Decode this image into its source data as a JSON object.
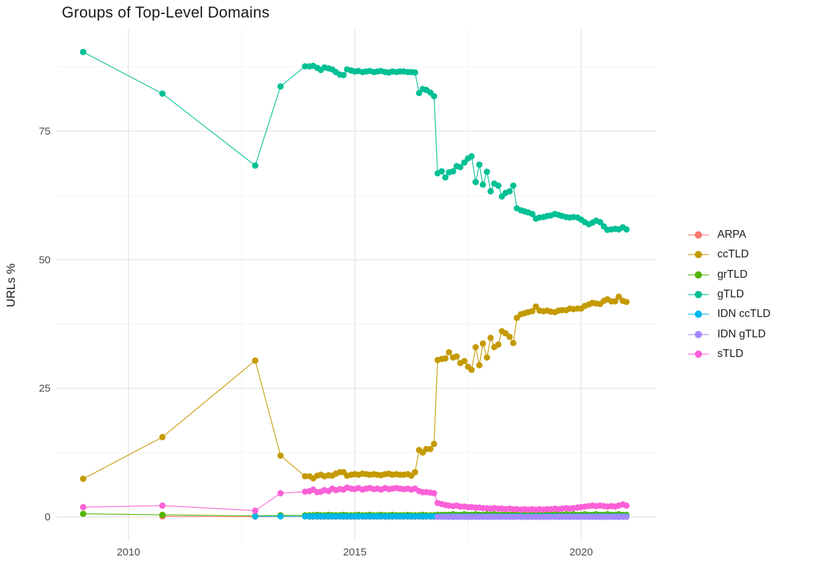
{
  "chart_data": {
    "type": "line",
    "title": "Groups of Top-Level Domains",
    "xlabel": "",
    "ylabel": "URLs %",
    "x_ticks": [
      2010,
      2015,
      2020
    ],
    "x_minor_ticks": [
      2012.5,
      2017.5
    ],
    "y_ticks": [
      0,
      25,
      50,
      75
    ],
    "y_minor_ticks": [
      12.5,
      37.5,
      62.5,
      87.5
    ],
    "xlim": [
      2008.4,
      2021.7
    ],
    "ylim": [
      -4.5,
      95
    ],
    "grid": true,
    "legend_position": "right",
    "x_dense": [
      2014.0,
      2014.08,
      2014.17,
      2014.25,
      2014.33,
      2014.42,
      2014.5,
      2014.58,
      2014.67,
      2014.75,
      2014.83,
      2014.92,
      2015.0,
      2015.08,
      2015.17,
      2015.25,
      2015.33,
      2015.42,
      2015.5,
      2015.58,
      2015.67,
      2015.75,
      2015.83,
      2015.92,
      2016.0,
      2016.08,
      2016.17,
      2016.25,
      2016.33,
      2016.42,
      2016.5,
      2016.58,
      2016.67,
      2016.75,
      2016.83,
      2016.92,
      2017.0,
      2017.08,
      2017.17,
      2017.25,
      2017.33,
      2017.42,
      2017.5,
      2017.58,
      2017.67,
      2017.75,
      2017.83,
      2017.92,
      2018.0,
      2018.08,
      2018.17,
      2018.25,
      2018.33,
      2018.42,
      2018.5,
      2018.58,
      2018.67,
      2018.75,
      2018.83,
      2018.92,
      2019.0,
      2019.08,
      2019.17,
      2019.25,
      2019.33,
      2019.42,
      2019.5,
      2019.58,
      2019.67,
      2019.75,
      2019.83,
      2019.92,
      2020.0,
      2020.08,
      2020.17,
      2020.25,
      2020.33,
      2020.42,
      2020.5,
      2020.58,
      2020.67,
      2020.75,
      2020.83,
      2020.92,
      2021.0
    ],
    "series": [
      {
        "name": "ARPA",
        "color": "#F8766D",
        "pre_x": [
          2010.75,
          2012.8
        ],
        "pre_y": [
          0.1,
          0.05
        ],
        "dense_y": [
          0.05,
          0.05,
          0.05,
          0.05,
          0.05,
          0.05,
          0.05,
          0.05,
          0.05,
          0.05,
          0.05,
          0.05,
          0.05,
          0.05,
          0.05,
          0.05,
          0.05,
          0.05,
          0.05,
          0.05,
          0.05,
          0.05,
          0.05,
          0.05,
          0.05,
          0.05,
          0.05,
          0.05,
          0.05,
          0.05,
          0.05,
          0.05,
          0.05,
          0.05,
          0.05,
          0.05,
          0.05,
          0.05,
          0.05,
          0.05,
          0.05,
          0.05,
          0.05,
          0.05,
          0.05,
          0.05,
          0.05,
          0.05,
          0.05,
          0.05,
          0.05,
          0.05,
          0.05,
          0.05,
          0.05,
          0.05,
          0.05,
          0.05,
          0.05,
          0.05,
          0.05,
          0.05,
          0.05,
          0.05,
          0.05,
          0.05,
          0.05,
          0.05,
          0.05,
          0.05,
          0.05,
          0.05,
          0.05,
          0.05,
          0.05,
          0.05,
          0.05,
          0.05,
          0.05,
          0.05,
          0.05,
          0.05,
          0.05,
          0.05,
          0.05
        ]
      },
      {
        "name": "ccTLD",
        "color": "#C49A00",
        "pre_x": [
          2009.0,
          2010.75,
          2012.8,
          2013.36,
          2013.9
        ],
        "pre_y": [
          7.4,
          15.5,
          30.4,
          11.9,
          7.9
        ],
        "dense_y": [
          7.9,
          7.5,
          8.0,
          8.2,
          7.9,
          8.1,
          8.0,
          8.4,
          8.7,
          8.7,
          8.0,
          8.2,
          8.3,
          8.2,
          8.4,
          8.3,
          8.2,
          8.3,
          8.2,
          8.1,
          8.3,
          8.4,
          8.2,
          8.3,
          8.2,
          8.2,
          8.3,
          8.0,
          8.7,
          13.0,
          12.5,
          13.2,
          13.2,
          14.2,
          30.5,
          30.7,
          30.8,
          32.0,
          31.0,
          31.2,
          29.9,
          30.3,
          29.2,
          28.6,
          33.0,
          29.5,
          33.7,
          31.0,
          34.8,
          33.0,
          33.5,
          36.1,
          35.7,
          35.0,
          33.8,
          38.7,
          39.4,
          39.6,
          39.8,
          40.0,
          40.9,
          40.1,
          40.0,
          40.1,
          39.9,
          39.8,
          40.1,
          40.2,
          40.2,
          40.5,
          40.4,
          40.5,
          40.5,
          41.0,
          41.3,
          41.6,
          41.5,
          41.4,
          42.0,
          42.3,
          41.9,
          41.9,
          42.8,
          42.0,
          41.8
        ]
      },
      {
        "name": "grTLD",
        "color": "#53B400",
        "pre_x": [
          2009.0,
          2010.75,
          2012.8,
          2013.36,
          2013.9
        ],
        "pre_y": [
          0.6,
          0.4,
          0.2,
          0.3,
          0.3
        ],
        "dense_y": [
          0.3,
          0.3,
          0.4,
          0.3,
          0.3,
          0.4,
          0.3,
          0.3,
          0.3,
          0.4,
          0.3,
          0.3,
          0.3,
          0.4,
          0.3,
          0.3,
          0.4,
          0.3,
          0.3,
          0.4,
          0.3,
          0.3,
          0.4,
          0.3,
          0.3,
          0.3,
          0.4,
          0.3,
          0.3,
          0.3,
          0.4,
          0.3,
          0.3,
          0.3,
          0.4,
          0.4,
          0.4,
          0.4,
          0.5,
          0.4,
          0.4,
          0.5,
          0.4,
          0.4,
          0.5,
          0.4,
          0.4,
          0.5,
          0.4,
          0.5,
          0.4,
          0.4,
          0.5,
          0.4,
          0.5,
          0.4,
          0.4,
          0.5,
          0.4,
          0.4,
          0.5,
          0.4,
          0.4,
          0.5,
          0.4,
          0.5,
          0.4,
          0.4,
          0.5,
          0.4,
          0.5,
          0.4,
          0.4,
          0.5,
          0.4,
          0.4,
          0.5,
          0.4,
          0.4,
          0.5,
          0.4,
          0.4,
          0.5,
          0.4,
          0.4
        ]
      },
      {
        "name": "gTLD",
        "color": "#00C094",
        "pre_x": [
          2009.0,
          2010.75,
          2012.8,
          2013.36,
          2013.9
        ],
        "pre_y": [
          90.4,
          82.3,
          68.3,
          83.7,
          87.6
        ],
        "dense_y": [
          87.6,
          87.7,
          87.3,
          86.9,
          87.4,
          87.2,
          87.0,
          86.5,
          86.0,
          85.9,
          87.0,
          86.8,
          86.6,
          86.7,
          86.5,
          86.6,
          86.7,
          86.5,
          86.6,
          86.7,
          86.5,
          86.4,
          86.6,
          86.5,
          86.6,
          86.6,
          86.5,
          86.5,
          86.4,
          82.4,
          83.2,
          83.0,
          82.5,
          81.8,
          66.8,
          67.2,
          66.0,
          67.0,
          67.2,
          68.2,
          68.0,
          68.9,
          69.7,
          70.1,
          65.1,
          68.5,
          64.6,
          67.1,
          63.3,
          64.8,
          64.4,
          62.3,
          63.0,
          63.3,
          64.4,
          60.0,
          59.6,
          59.4,
          59.2,
          58.9,
          58.0,
          58.2,
          58.3,
          58.5,
          58.6,
          58.9,
          58.7,
          58.5,
          58.3,
          58.2,
          58.3,
          58.2,
          57.8,
          57.3,
          56.9,
          57.2,
          57.6,
          57.3,
          56.5,
          55.8,
          55.9,
          56.0,
          55.9,
          56.3,
          55.9
        ]
      },
      {
        "name": "IDN ccTLD",
        "color": "#00B6EB",
        "pre_x": [
          2012.8,
          2013.36,
          2013.9
        ],
        "pre_y": [
          0.1,
          0.1,
          0.1
        ],
        "dense_y": [
          0.1,
          0.1,
          0.1,
          0.1,
          0.1,
          0.1,
          0.1,
          0.1,
          0.1,
          0.1,
          0.1,
          0.1,
          0.1,
          0.1,
          0.1,
          0.1,
          0.1,
          0.1,
          0.1,
          0.1,
          0.1,
          0.1,
          0.1,
          0.1,
          0.1,
          0.1,
          0.1,
          0.1,
          0.1,
          0.1,
          0.1,
          0.1,
          0.1,
          0.1,
          0.1,
          0.1,
          0.1,
          0.1,
          0.1,
          0.1,
          0.1,
          0.1,
          0.1,
          0.1,
          0.1,
          0.1,
          0.1,
          0.1,
          0.1,
          0.1,
          0.1,
          0.1,
          0.1,
          0.1,
          0.1,
          0.1,
          0.1,
          0.1,
          0.1,
          0.1,
          0.1,
          0.1,
          0.1,
          0.1,
          0.1,
          0.1,
          0.1,
          0.1,
          0.1,
          0.1,
          0.1,
          0.1,
          0.1,
          0.1,
          0.1,
          0.1,
          0.1,
          0.1,
          0.1,
          0.1,
          0.1,
          0.1,
          0.1,
          0.1,
          0.1
        ]
      },
      {
        "name": "IDN gTLD",
        "color": "#A58AFF",
        "pre_x": [],
        "pre_y": [],
        "dense_y": [
          null,
          null,
          null,
          null,
          null,
          null,
          null,
          null,
          null,
          null,
          null,
          null,
          null,
          null,
          null,
          null,
          null,
          null,
          null,
          null,
          null,
          null,
          null,
          null,
          null,
          null,
          null,
          null,
          null,
          null,
          null,
          null,
          null,
          null,
          0.0,
          0.0,
          0.0,
          0.0,
          0.0,
          0.0,
          0.0,
          0.0,
          0.0,
          0.0,
          0.0,
          0.0,
          0.0,
          0.0,
          0.0,
          0.0,
          0.0,
          0.0,
          0.0,
          0.0,
          0.0,
          0.0,
          0.0,
          0.0,
          0.0,
          0.0,
          0.0,
          0.0,
          0.0,
          0.0,
          0.0,
          0.0,
          0.0,
          0.0,
          0.0,
          0.0,
          0.0,
          0.0,
          0.0,
          0.0,
          0.0,
          0.0,
          0.0,
          0.0,
          0.0,
          0.0,
          0.0,
          0.0,
          0.0,
          0.0,
          0.0
        ]
      },
      {
        "name": "sTLD",
        "color": "#FB61D7",
        "pre_x": [
          2009.0,
          2010.75,
          2012.8,
          2013.36,
          2013.9
        ],
        "pre_y": [
          1.9,
          2.2,
          1.2,
          4.6,
          4.9
        ],
        "dense_y": [
          5.0,
          5.3,
          4.8,
          4.9,
          5.2,
          5.0,
          5.5,
          5.2,
          5.4,
          5.3,
          5.7,
          5.5,
          5.4,
          5.6,
          5.3,
          5.5,
          5.6,
          5.4,
          5.5,
          5.3,
          5.6,
          5.4,
          5.5,
          5.6,
          5.5,
          5.4,
          5.5,
          5.3,
          5.5,
          5.0,
          4.8,
          4.8,
          4.7,
          4.6,
          2.7,
          2.5,
          2.3,
          2.2,
          2.1,
          2.2,
          2.0,
          2.0,
          1.9,
          1.9,
          1.8,
          1.8,
          1.7,
          1.7,
          1.6,
          1.7,
          1.6,
          1.6,
          1.5,
          1.6,
          1.5,
          1.5,
          1.4,
          1.5,
          1.4,
          1.5,
          1.4,
          1.5,
          1.4,
          1.5,
          1.5,
          1.6,
          1.5,
          1.6,
          1.7,
          1.6,
          1.7,
          1.8,
          1.9,
          2.0,
          2.1,
          2.2,
          2.1,
          2.2,
          2.1,
          2.0,
          2.1,
          2.0,
          2.2,
          2.4,
          2.2
        ]
      }
    ],
    "style": {
      "background": "#ffffff",
      "grid_major_color": "#e3e3e3",
      "grid_minor_color": "#f1f1f1",
      "axis_text_color": "#4d4d4d",
      "text_color": "#1a1a1a"
    }
  }
}
